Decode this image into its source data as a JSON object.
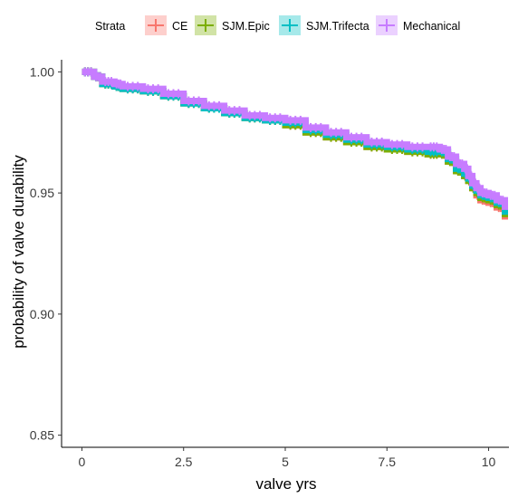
{
  "chart_data": {
    "type": "line",
    "xlabel": "valve yrs",
    "ylabel": "probability of valve durability",
    "xlim": [
      -0.5,
      10.5
    ],
    "ylim": [
      0.845,
      1.005
    ],
    "xticks": [
      0,
      2.5,
      5,
      7.5,
      10
    ],
    "xtick_labels": [
      "0",
      "2.5",
      "5",
      "7.5",
      "10"
    ],
    "yticks": [
      0.85,
      0.9,
      0.95,
      1.0
    ],
    "ytick_labels": [
      "0.85",
      "0.90",
      "0.95",
      "1.00"
    ],
    "grid": false,
    "legend": {
      "title": "Strata",
      "position": "top",
      "entries": [
        "CE",
        "SJM.Epic",
        "SJM.Trifecta",
        "Mechanical"
      ]
    },
    "series": [
      {
        "name": "CE",
        "color": "#F8766D",
        "x": [
          0,
          0.3,
          0.5,
          0.8,
          1.0,
          1.5,
          2.0,
          2.5,
          3.0,
          3.5,
          4.0,
          4.5,
          5.0,
          5.5,
          6.0,
          6.5,
          7.0,
          7.5,
          8.0,
          8.5,
          8.8,
          9.0,
          9.2,
          9.4,
          9.5,
          9.6,
          9.7,
          9.8,
          10.0,
          10.2,
          10.4
        ],
        "y": [
          1.0,
          0.998,
          0.995,
          0.994,
          0.993,
          0.992,
          0.99,
          0.987,
          0.985,
          0.983,
          0.981,
          0.98,
          0.978,
          0.975,
          0.973,
          0.971,
          0.969,
          0.968,
          0.967,
          0.966,
          0.966,
          0.963,
          0.959,
          0.957,
          0.955,
          0.952,
          0.949,
          0.947,
          0.946,
          0.944,
          0.939
        ]
      },
      {
        "name": "SJM.Epic",
        "color": "#7CAE00",
        "x": [
          0,
          0.3,
          0.5,
          0.8,
          1.0,
          1.5,
          2.0,
          2.5,
          3.0,
          3.5,
          4.0,
          4.5,
          5.0,
          5.5,
          6.0,
          6.5,
          7.0,
          7.5,
          8.0,
          8.5,
          8.8,
          9.0,
          9.2,
          9.4,
          9.5,
          9.6,
          9.7,
          9.8,
          10.0,
          10.2,
          10.4
        ],
        "y": [
          1.0,
          0.998,
          0.995,
          0.994,
          0.993,
          0.992,
          0.99,
          0.987,
          0.985,
          0.983,
          0.981,
          0.98,
          0.978,
          0.975,
          0.973,
          0.971,
          0.969,
          0.968,
          0.967,
          0.966,
          0.966,
          0.963,
          0.959,
          0.957,
          0.955,
          0.952,
          0.95,
          0.948,
          0.947,
          0.945,
          0.94
        ]
      },
      {
        "name": "SJM.Trifecta",
        "color": "#00BFC4",
        "x": [
          0,
          0.3,
          0.5,
          0.8,
          1.0,
          1.5,
          2.0,
          2.5,
          3.0,
          3.5,
          4.0,
          4.5,
          5.0,
          5.5,
          6.0,
          6.5,
          7.0,
          7.5,
          8.0,
          8.5,
          8.8,
          9.0,
          9.2,
          9.4,
          9.5,
          9.6,
          9.7,
          9.8,
          10.0,
          10.2,
          10.4
        ],
        "y": [
          1.0,
          0.998,
          0.995,
          0.994,
          0.993,
          0.992,
          0.99,
          0.987,
          0.985,
          0.983,
          0.981,
          0.98,
          0.979,
          0.976,
          0.974,
          0.972,
          0.97,
          0.969,
          0.968,
          0.967,
          0.967,
          0.964,
          0.96,
          0.958,
          0.956,
          0.953,
          0.951,
          0.949,
          0.948,
          0.946,
          0.941
        ]
      },
      {
        "name": "Mechanical",
        "color": "#C77CFF",
        "x": [
          0,
          0.3,
          0.5,
          0.8,
          1.0,
          1.5,
          2.0,
          2.5,
          3.0,
          3.5,
          4.0,
          4.5,
          5.0,
          5.5,
          6.0,
          6.5,
          7.0,
          7.5,
          8.0,
          8.5,
          8.8,
          9.0,
          9.2,
          9.4,
          9.5,
          9.6,
          9.7,
          9.8,
          10.0,
          10.2,
          10.4
        ],
        "y": [
          1.0,
          0.998,
          0.996,
          0.995,
          0.994,
          0.993,
          0.991,
          0.988,
          0.986,
          0.984,
          0.982,
          0.981,
          0.98,
          0.977,
          0.975,
          0.973,
          0.971,
          0.97,
          0.969,
          0.969,
          0.968,
          0.965,
          0.962,
          0.96,
          0.957,
          0.954,
          0.952,
          0.95,
          0.949,
          0.947,
          0.943
        ]
      }
    ]
  }
}
